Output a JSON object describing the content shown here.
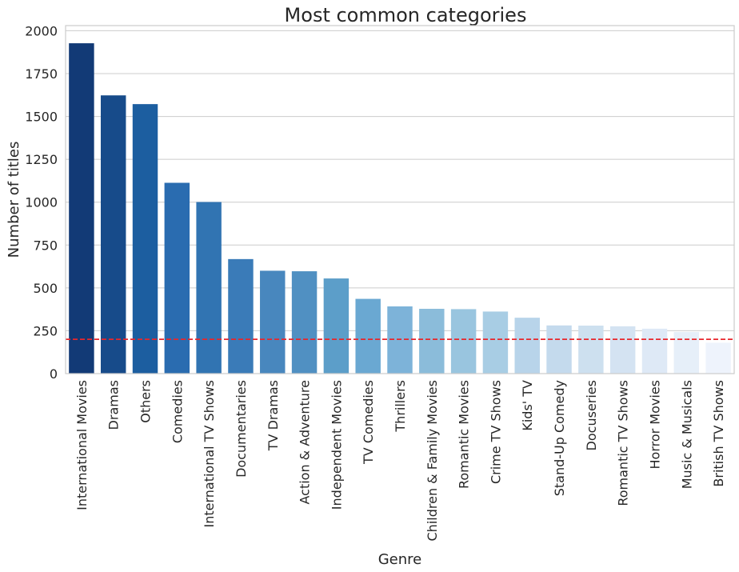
{
  "chart_data": {
    "type": "bar",
    "title": "Most common categories",
    "xlabel": "Genre",
    "ylabel": "Number of titles",
    "ylim": [
      0,
      2030
    ],
    "yticks": [
      0,
      250,
      500,
      750,
      1000,
      1250,
      1500,
      1750,
      2000
    ],
    "grid": "horizontal",
    "categories": [
      "International Movies",
      "Dramas",
      "Others",
      "Comedies",
      "International TV Shows",
      "Documentaries",
      "TV Dramas",
      "Action & Adventure",
      "Independent Movies",
      "TV Comedies",
      "Thrillers",
      "Children & Family Movies",
      "Romantic Movies",
      "Crime TV Shows",
      "Kids' TV",
      "Stand-Up Comedy",
      "Docuseries",
      "Romantic TV Shows",
      "Horror Movies",
      "Music & Musicals",
      "British TV Shows"
    ],
    "values": [
      1927,
      1623,
      1572,
      1113,
      1001,
      668,
      600,
      597,
      555,
      436,
      392,
      378,
      376,
      362,
      326,
      281,
      280,
      276,
      262,
      243,
      180
    ],
    "bar_colors": [
      "#123a76",
      "#174b8a",
      "#1c5ea0",
      "#2a6cb0",
      "#3174b2",
      "#3a7bb8",
      "#4887be",
      "#5090c2",
      "#5c9ec9",
      "#6aa8d2",
      "#7db3d9",
      "#8bbcda",
      "#99c5df",
      "#a8cde4",
      "#b8d4ea",
      "#c4daed",
      "#cde0ef",
      "#d4e3f2",
      "#dee9f6",
      "#e6eff9",
      "#eef3fc"
    ],
    "reference_line": {
      "value": 200,
      "color": "#e8262b",
      "style": "dashed"
    }
  }
}
